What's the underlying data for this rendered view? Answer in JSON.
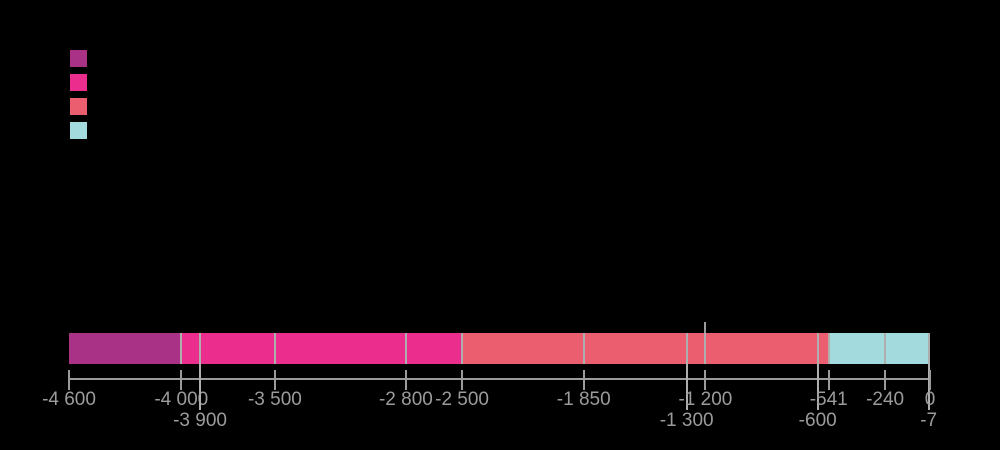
{
  "page": {
    "background": "#000000"
  },
  "legend": {
    "swatches": [
      {
        "name": "legend-swatch-era-1",
        "color": "#a93287"
      },
      {
        "name": "legend-swatch-era-2",
        "color": "#eb2d8d"
      },
      {
        "name": "legend-swatch-era-3",
        "color": "#ea5e6f"
      },
      {
        "name": "legend-swatch-era-4",
        "color": "#a3dadd"
      }
    ]
  },
  "chart_data": {
    "type": "bar",
    "subtype": "segmented-timeline",
    "title": "",
    "xlabel": "",
    "ylabel": "",
    "x_min": -4600,
    "x_max": 0,
    "grid": false,
    "legend_position": "top-left",
    "axis_color": "#9b9b9b",
    "label_color": "#9b9b9b",
    "divider_color": "#aeaeae",
    "eras": [
      {
        "start": -4600,
        "end": -4000,
        "color": "#a93287"
      },
      {
        "start": -4000,
        "end": -2500,
        "color": "#eb2d8d"
      },
      {
        "start": -2500,
        "end": -541,
        "color": "#ea5e6f"
      },
      {
        "start": -541,
        "end": -7,
        "color": "#a3dadd"
      }
    ],
    "segment_boundaries": [
      -4000,
      -3900,
      -3500,
      -2800,
      -2500,
      -1850,
      -1300,
      -1200,
      -600,
      -541,
      -240,
      -7
    ],
    "ticks": [
      {
        "value": -4600,
        "label": "-4 600",
        "row": 1
      },
      {
        "value": -4000,
        "label": "-4 000",
        "row": 1
      },
      {
        "value": -3900,
        "label": "-3 900",
        "row": 2
      },
      {
        "value": -3500,
        "label": "-3 500",
        "row": 1
      },
      {
        "value": -2800,
        "label": "-2 800",
        "row": 1
      },
      {
        "value": -2500,
        "label": "-2 500",
        "row": 1
      },
      {
        "value": -1850,
        "label": "-1 850",
        "row": 1
      },
      {
        "value": -1300,
        "label": "-1 300",
        "row": 2
      },
      {
        "value": -1200,
        "label": "-1 200",
        "row": 1
      },
      {
        "value": -600,
        "label": "-600",
        "row": 2
      },
      {
        "value": -541,
        "label": "-541",
        "row": 1
      },
      {
        "value": -240,
        "label": "-240",
        "row": 1
      },
      {
        "value": -7,
        "label": "-7",
        "row": 2
      },
      {
        "value": 0,
        "label": "0",
        "row": 1
      }
    ],
    "annotation_marker_value": -1200
  }
}
